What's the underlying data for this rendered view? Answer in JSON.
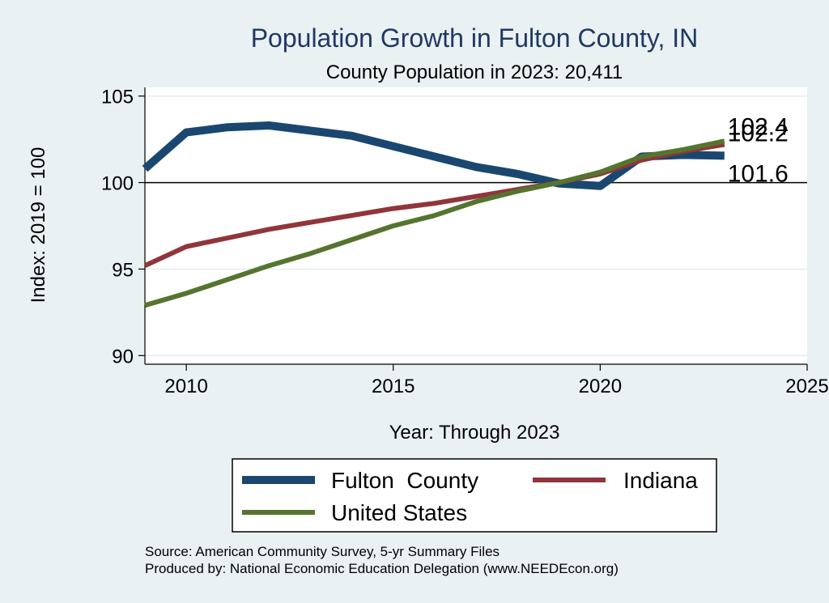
{
  "chart_data": {
    "type": "line",
    "title": "Population Growth in Fulton County, IN",
    "subtitle": "County Population in 2023: 20,411",
    "xlabel": "Year: Through 2023",
    "ylabel": "Index: 2019 = 100",
    "xlim": [
      2009,
      2025
    ],
    "ylim": [
      89.5,
      105.5
    ],
    "x_ticks": [
      2010,
      2015,
      2020,
      2025
    ],
    "y_ticks": [
      90,
      95,
      100,
      105
    ],
    "reference_line": 100,
    "grid": true,
    "legend_position": "bottom",
    "x": [
      2009,
      2010,
      2011,
      2012,
      2013,
      2014,
      2015,
      2016,
      2017,
      2018,
      2019,
      2020,
      2021,
      2022,
      2023
    ],
    "series": [
      {
        "name": "Fulton  County",
        "color": "#1a476f",
        "values": [
          100.8,
          102.9,
          103.2,
          103.3,
          103.0,
          102.7,
          102.1,
          101.5,
          100.9,
          100.5,
          99.95,
          99.8,
          101.5,
          101.6,
          101.55
        ],
        "end_label": "101.6"
      },
      {
        "name": "Indiana",
        "color": "#90353b",
        "values": [
          95.2,
          96.3,
          96.8,
          97.3,
          97.7,
          98.1,
          98.5,
          98.8,
          99.2,
          99.6,
          100.0,
          100.5,
          101.3,
          101.8,
          102.2
        ],
        "end_label": "102.2"
      },
      {
        "name": "United States",
        "color": "#55752f",
        "values": [
          92.9,
          93.6,
          94.4,
          95.2,
          95.9,
          96.7,
          97.5,
          98.1,
          98.9,
          99.5,
          100.0,
          100.6,
          101.5,
          101.9,
          102.4
        ],
        "end_label": "102.4"
      }
    ],
    "source_note": "Source: American Community Survey, 5-yr Summary Files",
    "producer_note": "Produced by: National Economic Education Delegation (www.NEEDEcon.org)"
  }
}
